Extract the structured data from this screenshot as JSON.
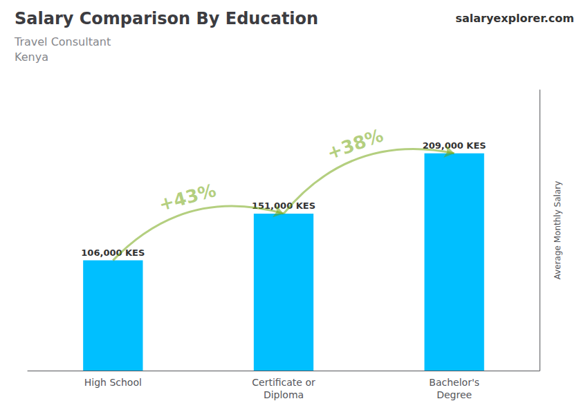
{
  "chart_data": {
    "type": "bar",
    "title": "Salary Comparison By Education",
    "subtitle": [
      "Travel Consultant",
      "Kenya"
    ],
    "y_label": "Average Monthly Salary",
    "categories": [
      "High School",
      "Certificate or\nDiploma",
      "Bachelor's\nDegree"
    ],
    "values": [
      106000,
      151000,
      209000
    ],
    "value_labels": [
      "106,000 KES",
      "151,000 KES",
      "209,000 KES"
    ],
    "data_labels": true,
    "color": "#00BFFF",
    "ylim": [
      0,
      270000
    ],
    "grid": false,
    "tick_labels": "x",
    "annotations": [
      "+43%",
      "+38%",
      "salaryexplorer.com"
    ]
  }
}
